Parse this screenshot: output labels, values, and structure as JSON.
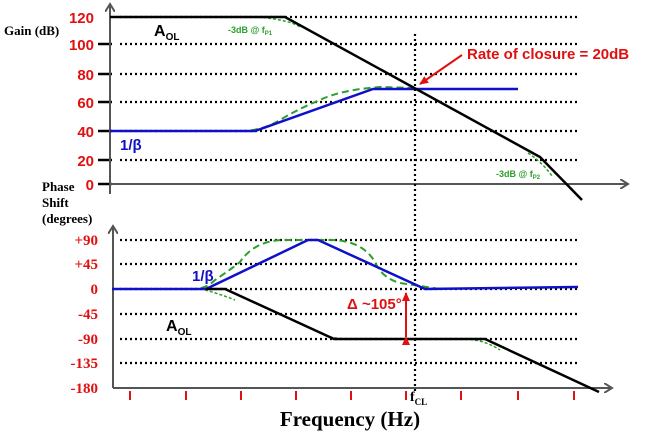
{
  "colors": {
    "aol": "#000000",
    "beta": "#1010c8",
    "asymptote": "#2aa02a",
    "annotation": "#e01010",
    "axis": "#555555"
  },
  "gain_plot": {
    "ylabel": "Gain (dB)",
    "ticks": [
      "120",
      "100",
      "80",
      "60",
      "40",
      "20",
      "0"
    ],
    "aol_label": "A",
    "aol_sub": "OL",
    "beta_label": "1/β",
    "fp1_label": "-3dB @ f",
    "fp1_sub": "P1",
    "fp2_label": "-3dB @ f",
    "fp2_sub": "P2",
    "closure_label": "Rate of closure = 20dB"
  },
  "phase_plot": {
    "ylabel": [
      "Phase",
      "Shift",
      "(degrees)"
    ],
    "ticks": [
      "+90",
      "+45",
      "0",
      "-45",
      "-90",
      "-135",
      "-180"
    ],
    "aol_label": "A",
    "aol_sub": "OL",
    "beta_label": "1/β",
    "margin_label": "Δ ~105°",
    "fcl_label": "f",
    "fcl_sub": "CL"
  },
  "xlabel": "Frequency (Hz)"
}
